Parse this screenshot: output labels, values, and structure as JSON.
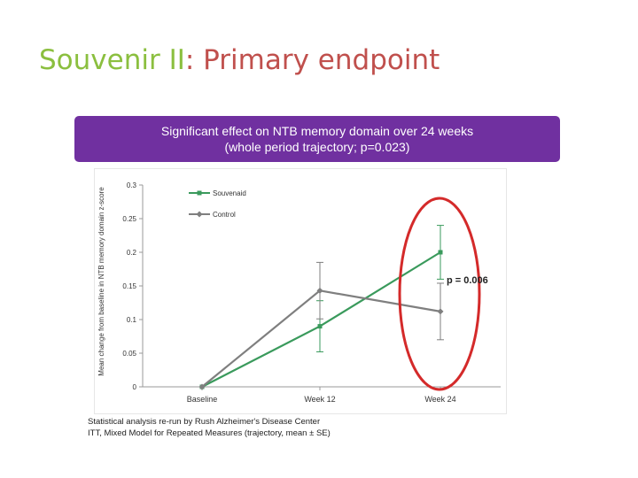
{
  "title": {
    "part1": "Souvenir II",
    "part2": ": Primary endpoint"
  },
  "banner": {
    "line1": "Significant effect on NTB memory domain over 24 weeks",
    "line2": "(whole period trajectory; p=0.023)"
  },
  "footnote": {
    "line1": "Statistical analysis re-run by Rush Alzheimer's Disease Center",
    "line2": "ITT, Mixed Model for Repeated Measures (trajectory, mean ± SE)"
  },
  "annotation": "p = 0.006",
  "colors": {
    "souvenaid": "#3a9a5c",
    "control": "#7f7f7f",
    "highlight": "#d42a2a",
    "banner": "#7030a0"
  },
  "chart_data": {
    "type": "line",
    "categories": [
      "Baseline",
      "Week 12",
      "Week 24"
    ],
    "ylabel": "Mean change from baseline in NTB memory domain z-score",
    "ylim": [
      0,
      0.3
    ],
    "yticks": [
      "0",
      "0.05",
      "0.1",
      "0.15",
      "0.2",
      "0.25",
      "0.3"
    ],
    "legend_position": "top-left",
    "grid": false,
    "series": [
      {
        "name": "Souvenaid",
        "values": [
          0,
          0.09,
          0.2
        ],
        "error": [
          0,
          0.038,
          0.04
        ]
      },
      {
        "name": "Control",
        "values": [
          0,
          0.143,
          0.112
        ],
        "error": [
          0,
          0.042,
          0.042
        ]
      }
    ]
  }
}
